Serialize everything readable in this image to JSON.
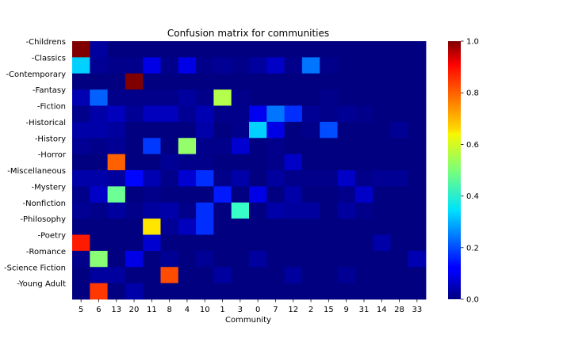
{
  "chart_data": {
    "type": "heatmap",
    "title": "Confusion matrix for communities",
    "xlabel": "Community",
    "ylabel": "",
    "colormap": "jet",
    "x_categories": [
      "5",
      "6",
      "13",
      "20",
      "11",
      "8",
      "4",
      "10",
      "1",
      "3",
      "0",
      "7",
      "12",
      "2",
      "15",
      "9",
      "31",
      "14",
      "28",
      "33"
    ],
    "y_categories": [
      "-Childrens",
      "-Classics",
      "-Contemporary",
      "-Fantasy",
      "-Fiction",
      "-Historical",
      "-History",
      "-Horror",
      "-Miscellaneous",
      "-Mystery",
      "-Nonfiction",
      "-Philosophy",
      "-Poetry",
      "-Romance",
      "-Science Fiction",
      "-Young Adult"
    ],
    "values": [
      [
        1.0,
        0.03,
        0,
        0,
        0,
        0,
        0,
        0,
        0,
        0,
        0,
        0,
        0,
        0,
        0,
        0,
        0,
        0,
        0,
        0
      ],
      [
        0.33,
        0.02,
        0.01,
        0.01,
        0.1,
        0.01,
        0.1,
        0.01,
        0.02,
        0.01,
        0.03,
        0.07,
        0.01,
        0.24,
        0.01,
        0,
        0,
        0,
        0,
        0
      ],
      [
        0,
        0,
        0,
        1.0,
        0,
        0,
        0,
        0,
        0,
        0,
        0,
        0,
        0,
        0,
        0,
        0,
        0,
        0,
        0,
        0
      ],
      [
        0.05,
        0.22,
        0.01,
        0.01,
        0.01,
        0.01,
        0.03,
        0.01,
        0.55,
        0.01,
        0,
        0,
        0,
        0,
        0.01,
        0,
        0,
        0,
        0,
        0
      ],
      [
        0.01,
        0.04,
        0.06,
        0.02,
        0.06,
        0.06,
        0.02,
        0.05,
        0.01,
        0.01,
        0.11,
        0.24,
        0.17,
        0.02,
        0.01,
        0.02,
        0.01,
        0,
        0,
        0
      ],
      [
        0.04,
        0.04,
        0.03,
        0,
        0,
        0,
        0,
        0.04,
        0,
        0.01,
        0.33,
        0.1,
        0,
        0.01,
        0.2,
        0,
        0,
        0,
        0.02,
        0
      ],
      [
        0.02,
        0.01,
        0.02,
        0,
        0.18,
        0,
        0.52,
        0.01,
        0.01,
        0.08,
        0,
        0.01,
        0,
        0,
        0,
        0,
        0,
        0,
        0,
        0
      ],
      [
        0,
        0,
        0.78,
        0,
        0,
        0.02,
        0.01,
        0.01,
        0,
        0,
        0,
        0.01,
        0.07,
        0,
        0,
        0,
        0,
        0,
        0,
        0
      ],
      [
        0.04,
        0.04,
        0.03,
        0.13,
        0.05,
        0.01,
        0.08,
        0.17,
        0.01,
        0.04,
        0,
        0.03,
        0.01,
        0.01,
        0.01,
        0.07,
        0.01,
        0.02,
        0.02,
        0
      ],
      [
        0.01,
        0.07,
        0.48,
        0,
        0.01,
        0,
        0,
        0,
        0.15,
        0,
        0.1,
        0,
        0.04,
        0,
        0,
        0.01,
        0.07,
        0,
        0,
        0
      ],
      [
        0.02,
        0.01,
        0.03,
        0.01,
        0.03,
        0.04,
        0.01,
        0.17,
        0,
        0.43,
        0,
        0.04,
        0.03,
        0.03,
        0,
        0.03,
        0.01,
        0,
        0,
        0
      ],
      [
        0,
        0,
        0,
        0,
        0.65,
        0.02,
        0.06,
        0.17,
        0,
        0,
        0,
        0,
        0,
        0,
        0,
        0,
        0,
        0,
        0,
        0
      ],
      [
        0.85,
        0,
        0,
        0,
        0.08,
        0,
        0,
        0,
        0,
        0,
        0,
        0,
        0,
        0,
        0,
        0,
        0,
        0.04,
        0,
        0
      ],
      [
        0.01,
        0.51,
        0,
        0.1,
        0,
        0.02,
        0,
        0.02,
        0,
        0,
        0.03,
        0,
        0,
        0,
        0,
        0,
        0,
        0,
        0,
        0.05
      ],
      [
        0,
        0.03,
        0.03,
        0,
        0,
        0.8,
        0,
        0,
        0.03,
        0,
        0,
        0,
        0.03,
        0,
        0,
        0.02,
        0,
        0,
        0,
        0
      ],
      [
        0,
        0.82,
        0,
        0.04,
        0,
        0,
        0,
        0,
        0,
        0,
        0,
        0,
        0,
        0,
        0,
        0,
        0,
        0,
        0,
        0
      ]
    ],
    "colorbar": {
      "range": [
        0.0,
        1.0
      ],
      "ticks": [
        "0.0",
        "0.2",
        "0.4",
        "0.6",
        "0.8",
        "1.0"
      ]
    },
    "grid": false,
    "legend": "none"
  }
}
